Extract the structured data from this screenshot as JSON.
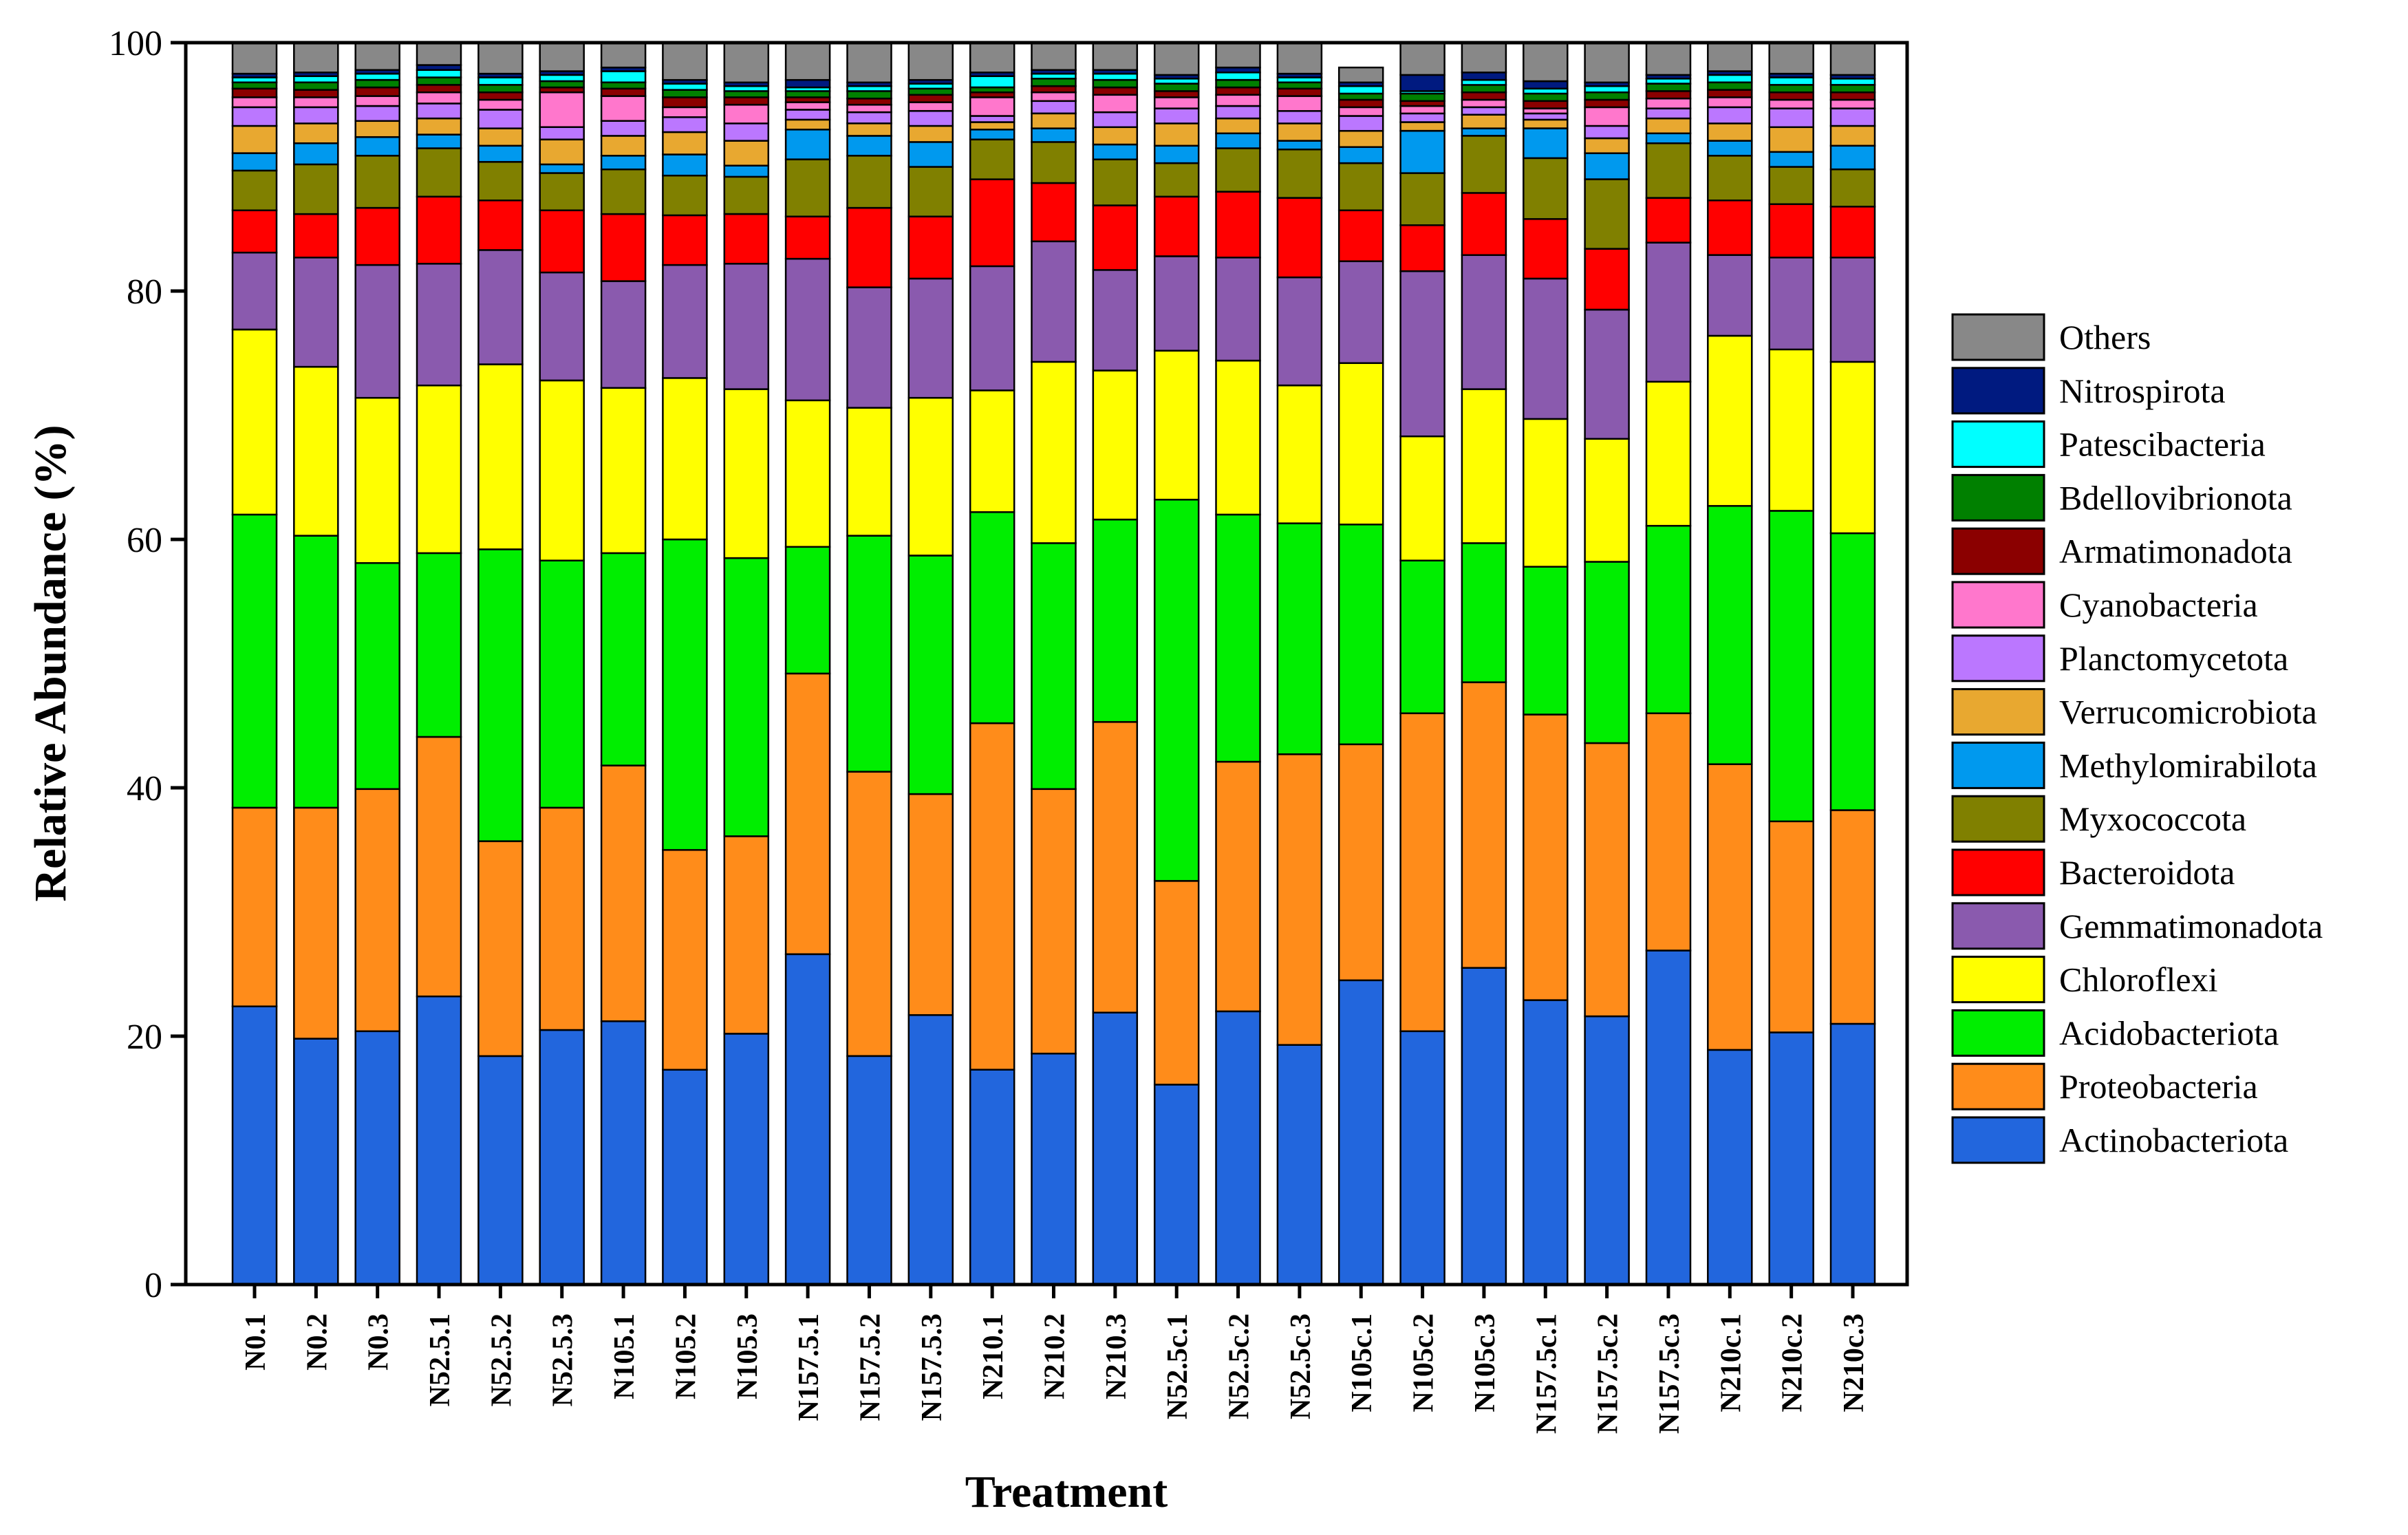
{
  "chart_data": {
    "type": "stacked-bar",
    "title": "",
    "xlabel": "Treatment",
    "ylabel": "Relative Abundance (%)",
    "ylim": [
      0,
      100
    ],
    "yticks": [
      "0",
      "20",
      "40",
      "60",
      "80",
      "100"
    ],
    "legend_position": "right",
    "categories": [
      "N0.1",
      "N0.2",
      "N0.3",
      "N52.5.1",
      "N52.5.2",
      "N52.5.3",
      "N105.1",
      "N105.2",
      "N105.3",
      "N157.5.1",
      "N157.5.2",
      "N157.5.3",
      "N210.1",
      "N210.2",
      "N210.3",
      "N52.5c.1",
      "N52.5c.2",
      "N52.5c.3",
      "N105c.1",
      "N105c.2",
      "N105c.3",
      "N157.5c.1",
      "N157.5c.2",
      "N157.5c.3",
      "N210c.1",
      "N210c.2",
      "N210c.3"
    ],
    "series": [
      {
        "name": "Actinobacteriota",
        "color": "#2266DD",
        "values": [
          22.4,
          19.8,
          20.4,
          23.2,
          18.4,
          20.5,
          21.2,
          17.3,
          20.2,
          26.6,
          18.4,
          21.7,
          17.3,
          18.6,
          21.9,
          16.1,
          22.0,
          19.3,
          24.5,
          20.4,
          25.5,
          22.9,
          21.6,
          26.9,
          18.9,
          20.3,
          21.0
        ]
      },
      {
        "name": "Proteobacteria",
        "color": "#FF8C1A",
        "values": [
          16.0,
          18.6,
          19.5,
          20.9,
          17.3,
          17.9,
          20.6,
          17.7,
          15.9,
          22.6,
          22.9,
          17.8,
          27.9,
          21.3,
          23.4,
          16.4,
          20.1,
          23.4,
          19.0,
          25.6,
          23.0,
          23.0,
          22.0,
          19.1,
          23.0,
          17.0,
          17.2
        ]
      },
      {
        "name": "Acidobacteriota",
        "color": "#00EE00",
        "values": [
          23.6,
          21.9,
          18.2,
          14.8,
          23.5,
          19.9,
          17.1,
          25.0,
          22.4,
          10.2,
          19.0,
          19.2,
          17.0,
          19.8,
          16.3,
          30.7,
          19.9,
          18.6,
          17.7,
          12.3,
          11.2,
          11.9,
          14.6,
          15.1,
          20.8,
          25.0,
          22.3
        ]
      },
      {
        "name": "Chloroflexi",
        "color": "#FFFF00",
        "values": [
          14.9,
          13.6,
          13.3,
          13.5,
          14.9,
          14.5,
          13.3,
          13.0,
          13.6,
          11.8,
          10.3,
          12.7,
          9.8,
          14.6,
          12.0,
          12.0,
          12.4,
          11.1,
          13.0,
          10.0,
          12.4,
          11.9,
          9.9,
          11.6,
          13.7,
          13.0,
          13.8
        ]
      },
      {
        "name": "Gemmatimonadota",
        "color": "#8A5AAE",
        "values": [
          6.2,
          8.8,
          10.7,
          9.8,
          9.2,
          8.7,
          8.6,
          9.1,
          10.1,
          11.4,
          9.7,
          9.6,
          10.0,
          9.7,
          8.1,
          7.6,
          8.3,
          8.7,
          8.2,
          13.3,
          10.8,
          11.3,
          10.4,
          11.2,
          6.5,
          7.4,
          8.4
        ]
      },
      {
        "name": "Bacteroidota",
        "color": "#FF0000",
        "values": [
          3.4,
          3.5,
          4.6,
          5.4,
          4.0,
          5.0,
          5.4,
          4.0,
          4.0,
          3.4,
          6.4,
          5.0,
          7.0,
          4.7,
          5.2,
          4.8,
          5.3,
          6.4,
          4.1,
          3.7,
          5.0,
          4.8,
          4.9,
          3.6,
          4.4,
          4.3,
          4.1
        ]
      },
      {
        "name": "Myxococcota",
        "color": "#808000",
        "values": [
          3.2,
          4.0,
          4.2,
          3.9,
          3.1,
          3.0,
          3.6,
          3.2,
          3.0,
          4.6,
          4.2,
          4.0,
          3.2,
          3.3,
          3.7,
          2.7,
          3.5,
          3.9,
          3.8,
          4.2,
          4.6,
          4.9,
          5.6,
          4.4,
          3.6,
          3.0,
          3.0
        ]
      },
      {
        "name": "Methylomirabilota",
        "color": "#0099EE",
        "values": [
          1.4,
          1.7,
          1.5,
          1.1,
          1.3,
          0.7,
          1.1,
          1.7,
          0.9,
          2.4,
          1.6,
          2.0,
          0.8,
          1.1,
          1.2,
          1.4,
          1.2,
          0.7,
          1.3,
          3.4,
          0.6,
          2.4,
          2.1,
          0.8,
          1.2,
          1.2,
          1.9
        ]
      },
      {
        "name": "Verrucomicrobiota",
        "color": "#E8A830",
        "values": [
          2.2,
          1.6,
          1.3,
          1.3,
          1.4,
          2.0,
          1.6,
          1.8,
          2.0,
          0.8,
          1.0,
          1.3,
          0.6,
          1.2,
          1.4,
          1.8,
          1.2,
          1.4,
          1.3,
          0.7,
          1.1,
          0.7,
          1.2,
          1.2,
          1.4,
          2.0,
          1.6
        ]
      },
      {
        "name": "Planctomycetota",
        "color": "#BB77FF",
        "values": [
          1.5,
          1.3,
          1.2,
          1.2,
          1.5,
          1.0,
          1.2,
          1.2,
          1.4,
          0.8,
          0.9,
          1.2,
          0.5,
          1.0,
          1.2,
          1.2,
          1.0,
          1.0,
          1.2,
          0.7,
          0.6,
          0.5,
          1.0,
          0.8,
          1.3,
          1.5,
          1.4
        ]
      },
      {
        "name": "Cyanobacteria",
        "color": "#FF77CC",
        "values": [
          0.8,
          0.8,
          0.8,
          0.9,
          0.8,
          2.8,
          2.0,
          0.8,
          1.5,
          0.6,
          0.6,
          0.7,
          1.5,
          0.7,
          1.4,
          0.9,
          0.9,
          1.2,
          0.7,
          0.6,
          0.6,
          0.4,
          1.5,
          0.8,
          0.8,
          0.7,
          0.7
        ]
      },
      {
        "name": "Armatimonadota",
        "color": "#8B0000",
        "values": [
          0.7,
          0.6,
          0.7,
          0.6,
          0.6,
          0.4,
          0.6,
          0.8,
          0.6,
          0.4,
          0.5,
          0.6,
          0.4,
          0.5,
          0.6,
          0.5,
          0.6,
          0.6,
          0.6,
          0.4,
          0.6,
          0.6,
          0.6,
          0.6,
          0.6,
          0.6,
          0.6
        ]
      },
      {
        "name": "Bdellovibrionota",
        "color": "#008000",
        "values": [
          0.5,
          0.6,
          0.6,
          0.6,
          0.6,
          0.5,
          0.5,
          0.6,
          0.5,
          0.5,
          0.6,
          0.5,
          0.4,
          0.6,
          0.6,
          0.6,
          0.6,
          0.5,
          0.5,
          0.6,
          0.6,
          0.6,
          0.6,
          0.6,
          0.6,
          0.6,
          0.6
        ]
      },
      {
        "name": "Patescibacteria",
        "color": "#00FFFF",
        "values": [
          0.4,
          0.5,
          0.5,
          0.6,
          0.6,
          0.5,
          0.9,
          0.5,
          0.4,
          0.3,
          0.4,
          0.4,
          0.9,
          0.4,
          0.5,
          0.4,
          0.6,
          0.4,
          0.6,
          0.2,
          0.4,
          0.4,
          0.5,
          0.4,
          0.6,
          0.6,
          0.5
        ]
      },
      {
        "name": "Nitrospirota",
        "color": "#001A80",
        "values": [
          0.3,
          0.3,
          0.3,
          0.4,
          0.3,
          0.3,
          0.3,
          0.3,
          0.3,
          0.6,
          0.3,
          0.3,
          0.3,
          0.3,
          0.3,
          0.3,
          0.4,
          0.3,
          0.3,
          1.3,
          0.6,
          0.6,
          0.3,
          0.3,
          0.3,
          0.3,
          0.3
        ]
      },
      {
        "name": "Others",
        "color": "#888888",
        "values": [
          2.5,
          2.4,
          2.2,
          1.8,
          2.5,
          2.3,
          2.0,
          3.0,
          3.2,
          3.0,
          3.2,
          3.0,
          2.4,
          2.2,
          2.2,
          2.6,
          2.0,
          2.5,
          1.2,
          2.6,
          2.4,
          3.1,
          3.2,
          2.6,
          2.3,
          2.5,
          2.6
        ]
      }
    ]
  }
}
